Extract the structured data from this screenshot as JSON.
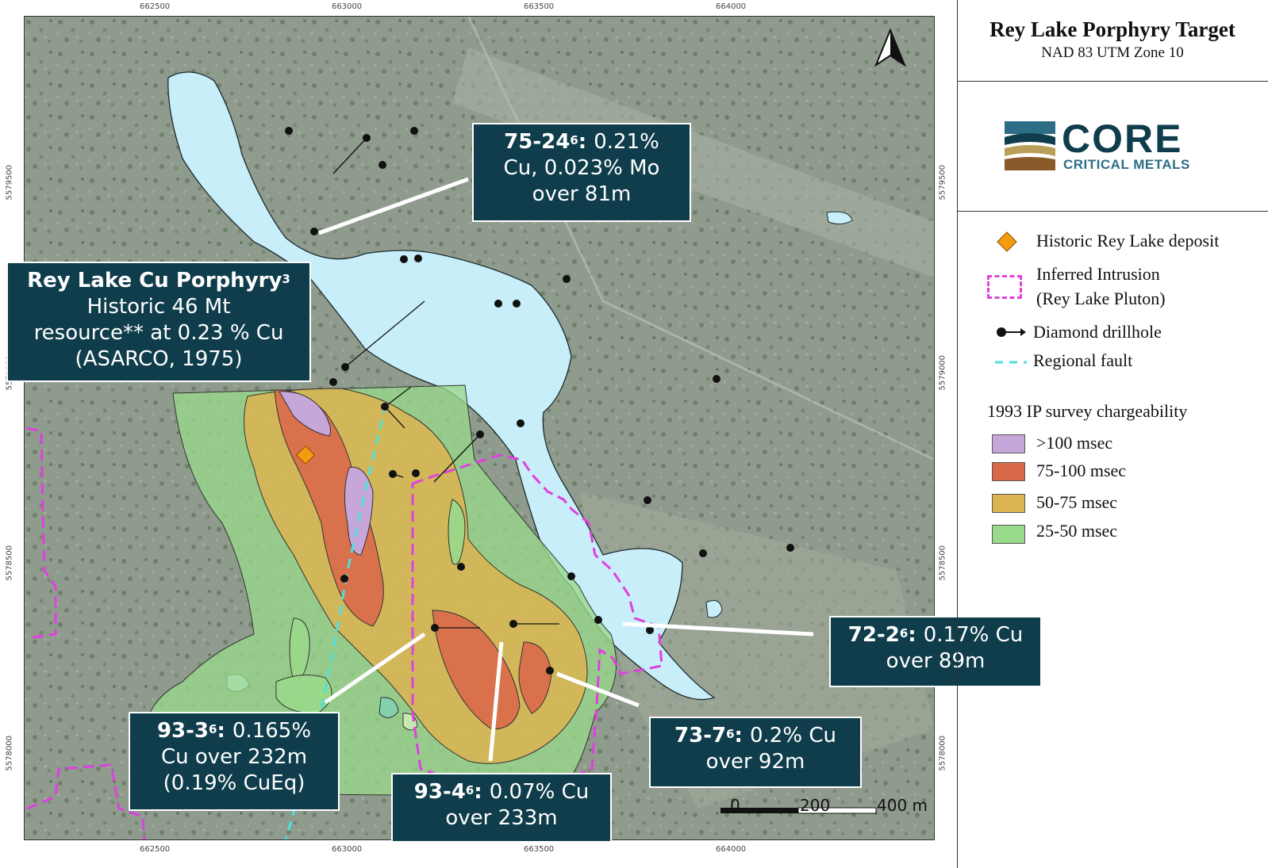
{
  "title": "Rey Lake Porphyry Target",
  "subtitle": "NAD 83 UTM Zone 10",
  "logo": {
    "name": "CORE",
    "tagline": "CRITICAL METALS",
    "colors": {
      "navy": "#0f3d4c",
      "teal": "#2d6e86",
      "gold": "#b9a05a",
      "brown": "#8a5a2b"
    }
  },
  "axis_ticks": {
    "easting": [
      "662500",
      "663000",
      "663500",
      "664000"
    ],
    "northing": [
      "5579500",
      "5579000",
      "5578500",
      "5578000"
    ]
  },
  "legend": {
    "items": [
      {
        "label": "Historic Rey Lake deposit",
        "icon": "orange-diamond-icon"
      },
      {
        "label_line1": "Inferred Intrusion",
        "label_line2": "(Rey Lake Pluton)",
        "icon": "magenta-dashed-box-icon"
      },
      {
        "label": "Diamond drillhole",
        "icon": "drillhole-arrow-icon"
      },
      {
        "label": "Regional fault",
        "icon": "cyan-dashed-line-icon"
      }
    ],
    "ip_heading": "1993 IP survey chargeability",
    "ip_classes": [
      {
        "label": ">100 msec",
        "color": "#c7a6d9"
      },
      {
        "label": "75-100 msec",
        "color": "#d9694a"
      },
      {
        "label": "50-75 msec",
        "color": "#dcb450"
      },
      {
        "label": "25-50 msec",
        "color": "#99d98a"
      }
    ]
  },
  "callouts": {
    "rey_lake": {
      "title": "Rey Lake Cu Porphyry",
      "sup": "3",
      "line2": "Historic 46 Mt",
      "line3": "resource** at 0.23 % Cu",
      "line4": "(ASARCO, 1975)"
    },
    "h75_24": {
      "hole": "75-24",
      "sup": "6",
      "text1": ": ",
      "text1b": "0.21%",
      "line2": "Cu, 0.023% Mo",
      "line3": "over 81m"
    },
    "h72_2": {
      "hole": "72-2",
      "sup": "6",
      "text1": ": ",
      "text1b": "0.17% Cu",
      "line2": "over 89m"
    },
    "h93_3": {
      "hole": "93-3",
      "sup": "6",
      "text1": ": ",
      "text1b": "0.165%",
      "line2": "Cu over 232m",
      "line3": "(0.19% CuEq)"
    },
    "h73_7": {
      "hole": "73-7",
      "sup": "6",
      "text1": ": ",
      "text1b": "0.2% Cu",
      "line2": "over 92m"
    },
    "h93_4": {
      "hole": "93-4",
      "sup": "6",
      "text1": ": ",
      "text1b": "0.07% Cu",
      "line2": "over 233m"
    }
  },
  "scale_bar": {
    "labels": [
      "0",
      "200",
      "400 m"
    ]
  },
  "north_arrow": "north-arrow-icon",
  "colors": {
    "lake": "#c8eefa",
    "intrusion": "#e040e0",
    "fault": "#4fe0e0",
    "callout_bg": "#0f3d4c",
    "deposit": "#f39c12"
  }
}
